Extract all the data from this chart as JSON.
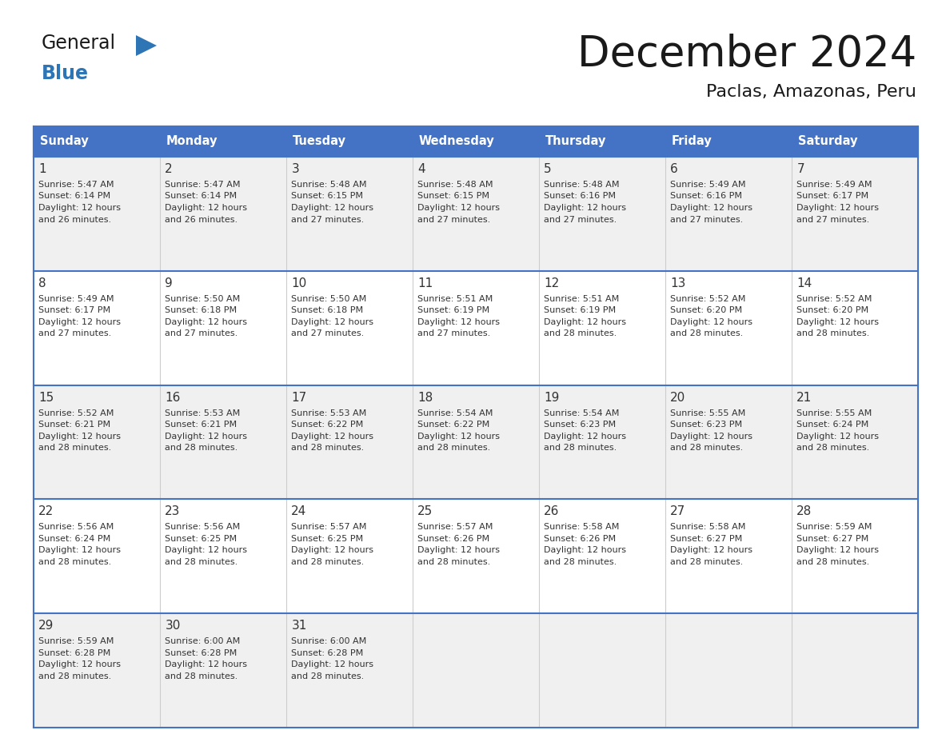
{
  "title": "December 2024",
  "subtitle": "Paclas, Amazonas, Peru",
  "header_bg_color": "#4472C4",
  "header_text_color": "#FFFFFF",
  "cell_bg_odd": "#F0F0F0",
  "cell_bg_even": "#FFFFFF",
  "grid_line_color": "#4472C4",
  "text_color": "#333333",
  "day_headers": [
    "Sunday",
    "Monday",
    "Tuesday",
    "Wednesday",
    "Thursday",
    "Friday",
    "Saturday"
  ],
  "weeks": [
    [
      {
        "day": "1",
        "sunrise": "5:47 AM",
        "sunset": "6:14 PM",
        "daylight_h": "12 hours",
        "daylight_m": "26 minutes"
      },
      {
        "day": "2",
        "sunrise": "5:47 AM",
        "sunset": "6:14 PM",
        "daylight_h": "12 hours",
        "daylight_m": "26 minutes"
      },
      {
        "day": "3",
        "sunrise": "5:48 AM",
        "sunset": "6:15 PM",
        "daylight_h": "12 hours",
        "daylight_m": "27 minutes"
      },
      {
        "day": "4",
        "sunrise": "5:48 AM",
        "sunset": "6:15 PM",
        "daylight_h": "12 hours",
        "daylight_m": "27 minutes"
      },
      {
        "day": "5",
        "sunrise": "5:48 AM",
        "sunset": "6:16 PM",
        "daylight_h": "12 hours",
        "daylight_m": "27 minutes"
      },
      {
        "day": "6",
        "sunrise": "5:49 AM",
        "sunset": "6:16 PM",
        "daylight_h": "12 hours",
        "daylight_m": "27 minutes"
      },
      {
        "day": "7",
        "sunrise": "5:49 AM",
        "sunset": "6:17 PM",
        "daylight_h": "12 hours",
        "daylight_m": "27 minutes"
      }
    ],
    [
      {
        "day": "8",
        "sunrise": "5:49 AM",
        "sunset": "6:17 PM",
        "daylight_h": "12 hours",
        "daylight_m": "27 minutes"
      },
      {
        "day": "9",
        "sunrise": "5:50 AM",
        "sunset": "6:18 PM",
        "daylight_h": "12 hours",
        "daylight_m": "27 minutes"
      },
      {
        "day": "10",
        "sunrise": "5:50 AM",
        "sunset": "6:18 PM",
        "daylight_h": "12 hours",
        "daylight_m": "27 minutes"
      },
      {
        "day": "11",
        "sunrise": "5:51 AM",
        "sunset": "6:19 PM",
        "daylight_h": "12 hours",
        "daylight_m": "27 minutes"
      },
      {
        "day": "12",
        "sunrise": "5:51 AM",
        "sunset": "6:19 PM",
        "daylight_h": "12 hours",
        "daylight_m": "28 minutes"
      },
      {
        "day": "13",
        "sunrise": "5:52 AM",
        "sunset": "6:20 PM",
        "daylight_h": "12 hours",
        "daylight_m": "28 minutes"
      },
      {
        "day": "14",
        "sunrise": "5:52 AM",
        "sunset": "6:20 PM",
        "daylight_h": "12 hours",
        "daylight_m": "28 minutes"
      }
    ],
    [
      {
        "day": "15",
        "sunrise": "5:52 AM",
        "sunset": "6:21 PM",
        "daylight_h": "12 hours",
        "daylight_m": "28 minutes"
      },
      {
        "day": "16",
        "sunrise": "5:53 AM",
        "sunset": "6:21 PM",
        "daylight_h": "12 hours",
        "daylight_m": "28 minutes"
      },
      {
        "day": "17",
        "sunrise": "5:53 AM",
        "sunset": "6:22 PM",
        "daylight_h": "12 hours",
        "daylight_m": "28 minutes"
      },
      {
        "day": "18",
        "sunrise": "5:54 AM",
        "sunset": "6:22 PM",
        "daylight_h": "12 hours",
        "daylight_m": "28 minutes"
      },
      {
        "day": "19",
        "sunrise": "5:54 AM",
        "sunset": "6:23 PM",
        "daylight_h": "12 hours",
        "daylight_m": "28 minutes"
      },
      {
        "day": "20",
        "sunrise": "5:55 AM",
        "sunset": "6:23 PM",
        "daylight_h": "12 hours",
        "daylight_m": "28 minutes"
      },
      {
        "day": "21",
        "sunrise": "5:55 AM",
        "sunset": "6:24 PM",
        "daylight_h": "12 hours",
        "daylight_m": "28 minutes"
      }
    ],
    [
      {
        "day": "22",
        "sunrise": "5:56 AM",
        "sunset": "6:24 PM",
        "daylight_h": "12 hours",
        "daylight_m": "28 minutes"
      },
      {
        "day": "23",
        "sunrise": "5:56 AM",
        "sunset": "6:25 PM",
        "daylight_h": "12 hours",
        "daylight_m": "28 minutes"
      },
      {
        "day": "24",
        "sunrise": "5:57 AM",
        "sunset": "6:25 PM",
        "daylight_h": "12 hours",
        "daylight_m": "28 minutes"
      },
      {
        "day": "25",
        "sunrise": "5:57 AM",
        "sunset": "6:26 PM",
        "daylight_h": "12 hours",
        "daylight_m": "28 minutes"
      },
      {
        "day": "26",
        "sunrise": "5:58 AM",
        "sunset": "6:26 PM",
        "daylight_h": "12 hours",
        "daylight_m": "28 minutes"
      },
      {
        "day": "27",
        "sunrise": "5:58 AM",
        "sunset": "6:27 PM",
        "daylight_h": "12 hours",
        "daylight_m": "28 minutes"
      },
      {
        "day": "28",
        "sunrise": "5:59 AM",
        "sunset": "6:27 PM",
        "daylight_h": "12 hours",
        "daylight_m": "28 minutes"
      }
    ],
    [
      {
        "day": "29",
        "sunrise": "5:59 AM",
        "sunset": "6:28 PM",
        "daylight_h": "12 hours",
        "daylight_m": "28 minutes"
      },
      {
        "day": "30",
        "sunrise": "6:00 AM",
        "sunset": "6:28 PM",
        "daylight_h": "12 hours",
        "daylight_m": "28 minutes"
      },
      {
        "day": "31",
        "sunrise": "6:00 AM",
        "sunset": "6:28 PM",
        "daylight_h": "12 hours",
        "daylight_m": "28 minutes"
      },
      null,
      null,
      null,
      null
    ]
  ],
  "logo_general_color": "#1A1A1A",
  "logo_blue_color": "#2E75B6",
  "logo_triangle_color": "#2E75B6",
  "title_color": "#1A1A1A",
  "subtitle_color": "#1A1A1A"
}
